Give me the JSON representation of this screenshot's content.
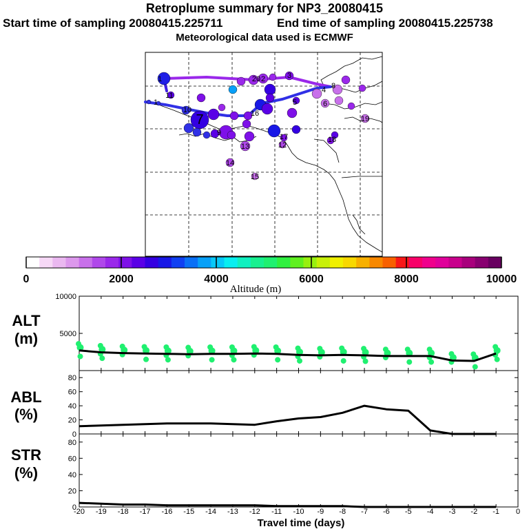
{
  "header": {
    "title": "Retroplume summary for NP3_20080415",
    "start": "Start time of sampling 20080415.225711",
    "end": "End time of sampling 20080415.225738",
    "met": "Meteorological data used is ECMWF"
  },
  "colorbar": {
    "label": "Altitude  (m)",
    "ticks": [
      "0",
      "2000",
      "4000",
      "6000",
      "8000",
      "10000"
    ],
    "colors": [
      "#ffffff",
      "#f6d8f6",
      "#eab8f0",
      "#dc98ec",
      "#c870ea",
      "#b048ea",
      "#9a28ea",
      "#7e10e8",
      "#5a00e6",
      "#3400e2",
      "#1818e6",
      "#1040f2",
      "#0a70f6",
      "#08a0f8",
      "#08c8f8",
      "#08eef0",
      "#10f0c0",
      "#18f090",
      "#20f070",
      "#30f040",
      "#60f020",
      "#98f010",
      "#c8f008",
      "#f0f000",
      "#f8d800",
      "#f8b000",
      "#f88800",
      "#f86000",
      "#f81818",
      "#f80068",
      "#f0008c",
      "#e0009a",
      "#c8008c",
      "#a8007c",
      "#880070",
      "#680060"
    ]
  },
  "map": {
    "labels": [
      "1",
      "1",
      "2",
      "3",
      "4",
      "5",
      "6",
      "7",
      "8",
      "9",
      "10",
      "11",
      "12",
      "13",
      "14",
      "15",
      "16",
      "17",
      "18",
      "19",
      "20"
    ]
  },
  "panels": {
    "alt": {
      "l1": "ALT",
      "l2": "(m)",
      "yticks": [
        "10000",
        "5000"
      ]
    },
    "abl": {
      "l1": "ABL",
      "l2": "(%)",
      "yticks": [
        "80",
        "60",
        "40",
        "20",
        "0"
      ]
    },
    "str": {
      "l1": "STR",
      "l2": "(%)",
      "yticks": [
        "80",
        "60",
        "40",
        "20",
        "0"
      ]
    }
  },
  "chart_data": {
    "type": "line",
    "xlabel": "Travel time (days)",
    "xticks": [
      "-20",
      "-19",
      "-18",
      "-17",
      "-16",
      "-15",
      "-14",
      "-13",
      "-12",
      "-11",
      "-10",
      "-9",
      "-8",
      "-7",
      "-6",
      "-5",
      "-4",
      "-3",
      "-2",
      "-1",
      "0"
    ],
    "xlim": [
      -20,
      0
    ],
    "series": [
      {
        "name": "ALT (m)",
        "ylim": [
          0,
          10000
        ],
        "x": [
          -20,
          -19,
          -18,
          -17,
          -16,
          -15,
          -14,
          -13,
          -12,
          -11,
          -10,
          -9,
          -8,
          -7,
          -6,
          -5,
          -4,
          -3,
          -2,
          -1
        ],
        "values": [
          2700,
          2450,
          2350,
          2300,
          2250,
          2200,
          2250,
          2250,
          2300,
          2250,
          2100,
          2050,
          2100,
          2050,
          1950,
          1950,
          1950,
          1350,
          1300,
          2300
        ]
      },
      {
        "name": "ABL (%)",
        "ylim": [
          0,
          90
        ],
        "x": [
          -20,
          -19,
          -18,
          -17,
          -16,
          -15,
          -14,
          -13,
          -12,
          -11,
          -10,
          -9,
          -8,
          -7,
          -6,
          -5,
          -4,
          -3,
          -2,
          -1
        ],
        "values": [
          11,
          12,
          13,
          14,
          15,
          15,
          15,
          14,
          13,
          18,
          22,
          24,
          30,
          40,
          35,
          33,
          5,
          0,
          0,
          0
        ]
      },
      {
        "name": "STR (%)",
        "ylim": [
          0,
          90
        ],
        "x": [
          -20,
          -19,
          -18,
          -17,
          -16,
          -15,
          -14,
          -13,
          -12,
          -11,
          -10,
          -9,
          -8,
          -7,
          -6,
          -5,
          -4,
          -3,
          -2,
          -1
        ],
        "values": [
          5,
          4,
          3,
          3,
          2,
          2,
          2,
          2,
          2,
          1,
          1,
          1,
          1,
          0,
          0,
          0,
          0,
          0,
          0,
          0
        ]
      }
    ]
  }
}
